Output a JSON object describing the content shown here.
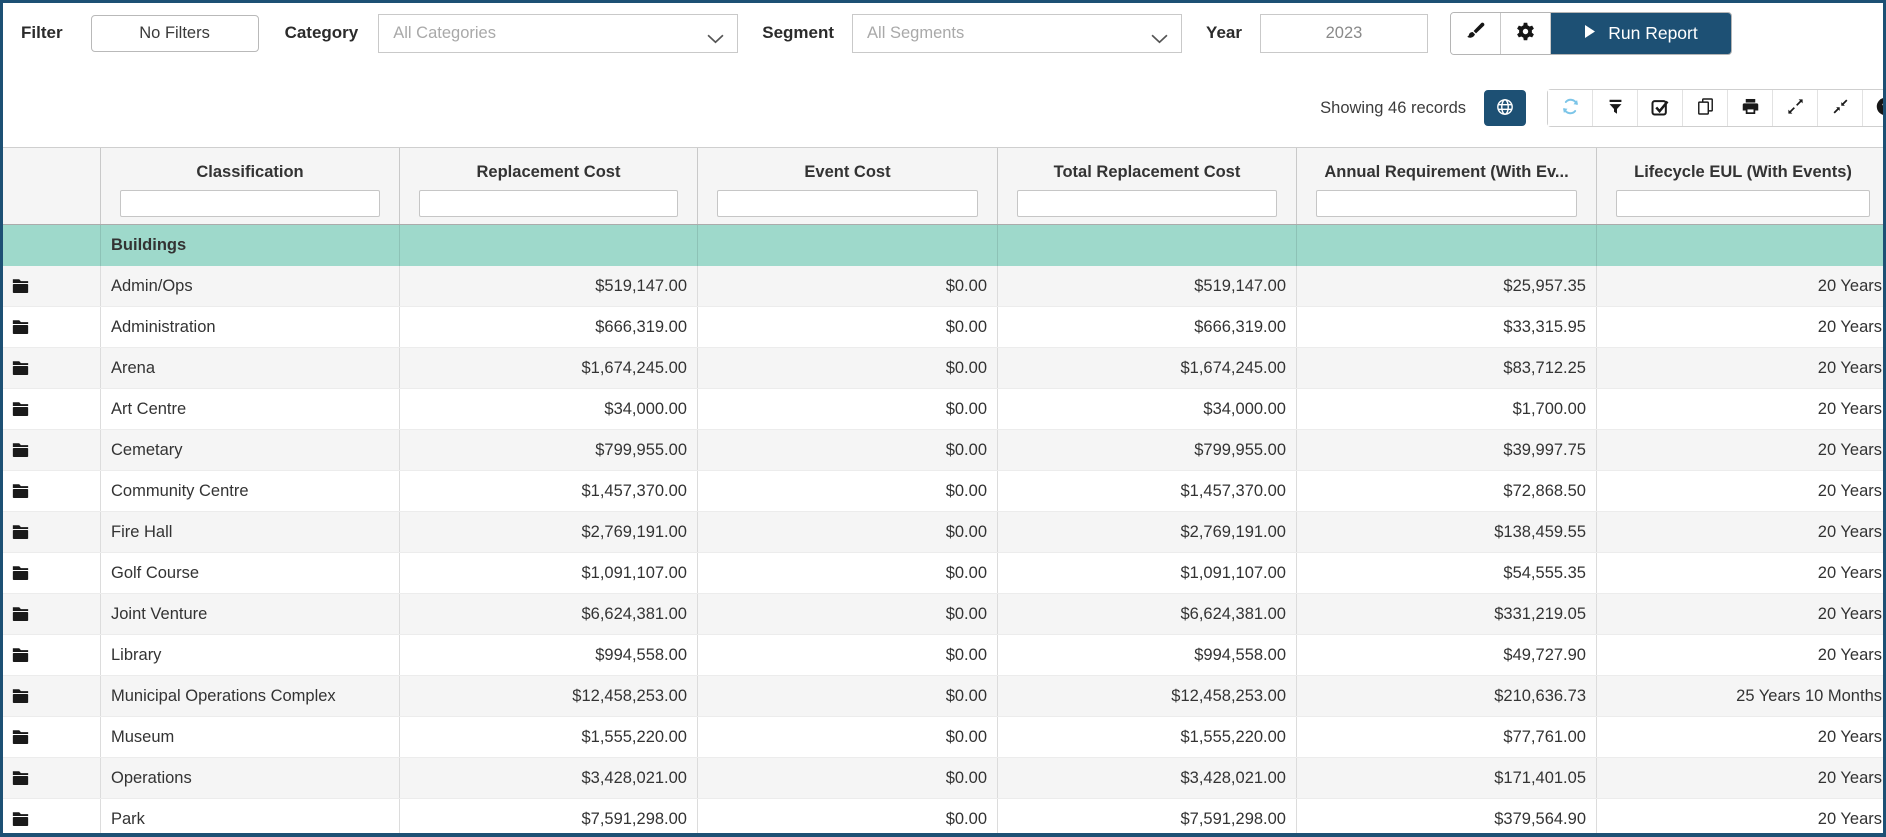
{
  "topbar": {
    "filter_label": "Filter",
    "no_filters_button": "No Filters",
    "category_label": "Category",
    "category_placeholder": "All Categories",
    "segment_label": "Segment",
    "segment_placeholder": "All Segments",
    "year_label": "Year",
    "year_value": "2023",
    "run_report_label": "Run Report",
    "icons": [
      "brush-icon",
      "gear-icon",
      "play-icon"
    ]
  },
  "statusbar": {
    "showing_text": "Showing 46 records",
    "icons": [
      "globe-icon",
      "refresh-icon",
      "filter-funnel-icon",
      "checkbox-icon",
      "copy-icon",
      "print-icon",
      "expand-icon",
      "collapse-icon",
      "help-icon"
    ]
  },
  "colors": {
    "navy": "#1d5074",
    "teal_group_row": "#9ed9cb",
    "header_bg": "#f5f5f5",
    "alt_row_bg": "#f5f5f5",
    "refresh_blue": "#7cc5e8",
    "text": "#333333",
    "placeholder_grey": "#a9a9a9"
  },
  "table": {
    "columns": [
      {
        "key": "icon",
        "label": ""
      },
      {
        "key": "classification",
        "label": "Classification"
      },
      {
        "key": "replacement_cost",
        "label": "Replacement Cost"
      },
      {
        "key": "event_cost",
        "label": "Event Cost"
      },
      {
        "key": "total_replacement_cost",
        "label": "Total Replacement Cost"
      },
      {
        "key": "annual_requirement",
        "label": "Annual Requirement (With Ev..."
      },
      {
        "key": "lifecycle_eul",
        "label": "Lifecycle EUL (With Events)"
      }
    ],
    "group_row_label": "Buildings",
    "rows": [
      {
        "name": "Admin/Ops",
        "replacement_cost": "$519,147.00",
        "event_cost": "$0.00",
        "total_replacement_cost": "$519,147.00",
        "annual_requirement": "$25,957.35",
        "lifecycle_eul": "20 Years"
      },
      {
        "name": "Administration",
        "replacement_cost": "$666,319.00",
        "event_cost": "$0.00",
        "total_replacement_cost": "$666,319.00",
        "annual_requirement": "$33,315.95",
        "lifecycle_eul": "20 Years"
      },
      {
        "name": "Arena",
        "replacement_cost": "$1,674,245.00",
        "event_cost": "$0.00",
        "total_replacement_cost": "$1,674,245.00",
        "annual_requirement": "$83,712.25",
        "lifecycle_eul": "20 Years"
      },
      {
        "name": "Art Centre",
        "replacement_cost": "$34,000.00",
        "event_cost": "$0.00",
        "total_replacement_cost": "$34,000.00",
        "annual_requirement": "$1,700.00",
        "lifecycle_eul": "20 Years"
      },
      {
        "name": "Cemetary",
        "replacement_cost": "$799,955.00",
        "event_cost": "$0.00",
        "total_replacement_cost": "$799,955.00",
        "annual_requirement": "$39,997.75",
        "lifecycle_eul": "20 Years"
      },
      {
        "name": "Community Centre",
        "replacement_cost": "$1,457,370.00",
        "event_cost": "$0.00",
        "total_replacement_cost": "$1,457,370.00",
        "annual_requirement": "$72,868.50",
        "lifecycle_eul": "20 Years"
      },
      {
        "name": "Fire Hall",
        "replacement_cost": "$2,769,191.00",
        "event_cost": "$0.00",
        "total_replacement_cost": "$2,769,191.00",
        "annual_requirement": "$138,459.55",
        "lifecycle_eul": "20 Years"
      },
      {
        "name": "Golf Course",
        "replacement_cost": "$1,091,107.00",
        "event_cost": "$0.00",
        "total_replacement_cost": "$1,091,107.00",
        "annual_requirement": "$54,555.35",
        "lifecycle_eul": "20 Years"
      },
      {
        "name": "Joint Venture",
        "replacement_cost": "$6,624,381.00",
        "event_cost": "$0.00",
        "total_replacement_cost": "$6,624,381.00",
        "annual_requirement": "$331,219.05",
        "lifecycle_eul": "20 Years"
      },
      {
        "name": "Library",
        "replacement_cost": "$994,558.00",
        "event_cost": "$0.00",
        "total_replacement_cost": "$994,558.00",
        "annual_requirement": "$49,727.90",
        "lifecycle_eul": "20 Years"
      },
      {
        "name": "Municipal Operations Complex",
        "replacement_cost": "$12,458,253.00",
        "event_cost": "$0.00",
        "total_replacement_cost": "$12,458,253.00",
        "annual_requirement": "$210,636.73",
        "lifecycle_eul": "25 Years 10 Months"
      },
      {
        "name": "Museum",
        "replacement_cost": "$1,555,220.00",
        "event_cost": "$0.00",
        "total_replacement_cost": "$1,555,220.00",
        "annual_requirement": "$77,761.00",
        "lifecycle_eul": "20 Years"
      },
      {
        "name": "Operations",
        "replacement_cost": "$3,428,021.00",
        "event_cost": "$0.00",
        "total_replacement_cost": "$3,428,021.00",
        "annual_requirement": "$171,401.05",
        "lifecycle_eul": "20 Years"
      },
      {
        "name": "Park",
        "replacement_cost": "$7,591,298.00",
        "event_cost": "$0.00",
        "total_replacement_cost": "$7,591,298.00",
        "annual_requirement": "$379,564.90",
        "lifecycle_eul": "20 Years"
      }
    ]
  }
}
